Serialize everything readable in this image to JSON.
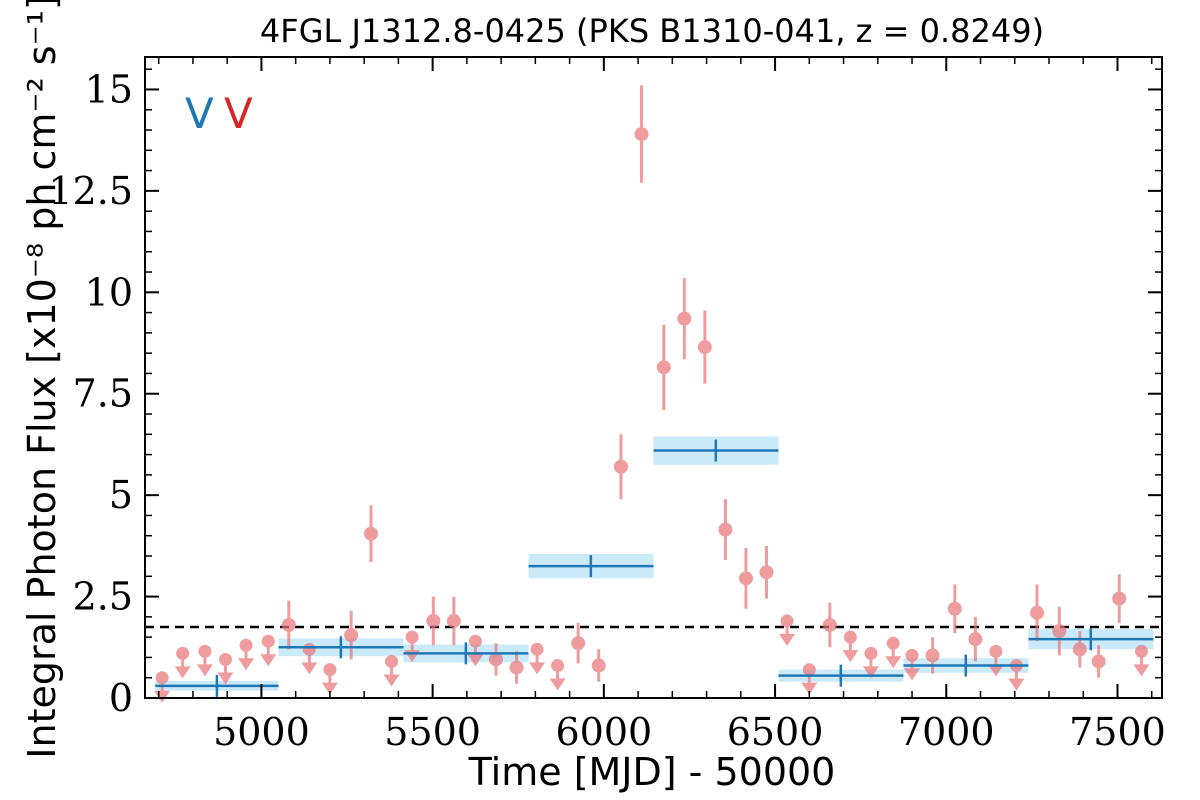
{
  "chart_data": {
    "type": "scatter",
    "title": "4FGL J1312.8-0425 (PKS B1310-041, z = 0.8249)",
    "xlabel": "Time [MJD] - 50000",
    "ylabel": "Integral Photon Flux [x10⁻⁸ ph cm⁻² s⁻¹]",
    "xlim": [
      4660,
      7630
    ],
    "ylim": [
      0,
      15.8
    ],
    "x_ticks": [
      5000,
      5500,
      6000,
      6500,
      7000,
      7500
    ],
    "y_ticks": [
      0,
      2.5,
      5,
      7.5,
      10,
      12.5,
      15
    ],
    "y_tick_labels": [
      "0",
      "2.5",
      "5",
      "7.5",
      "10",
      "12.5",
      "15"
    ],
    "grid": false,
    "legend": {
      "placement": "top-left",
      "entries": [
        {
          "label": "V",
          "color": "#1f77b4"
        },
        {
          "label": "V",
          "color": "#d62728"
        }
      ]
    },
    "reference_line": {
      "y": 1.75,
      "style": "dashed",
      "color": "#000000"
    },
    "detections": {
      "color": "#e8777a",
      "points": [
        {
          "x": 5080,
          "y": 1.8,
          "err": 0.6
        },
        {
          "x": 5262,
          "y": 1.55,
          "err": 0.6
        },
        {
          "x": 5320,
          "y": 4.05,
          "err": 0.7
        },
        {
          "x": 5502,
          "y": 1.9,
          "err": 0.6
        },
        {
          "x": 5562,
          "y": 1.9,
          "err": 0.6
        },
        {
          "x": 5685,
          "y": 0.95,
          "err": 0.4
        },
        {
          "x": 5745,
          "y": 0.75,
          "err": 0.4
        },
        {
          "x": 5925,
          "y": 1.35,
          "err": 0.5
        },
        {
          "x": 5985,
          "y": 0.8,
          "err": 0.4
        },
        {
          "x": 6050,
          "y": 5.7,
          "err": 0.8
        },
        {
          "x": 6110,
          "y": 13.9,
          "err": 1.2
        },
        {
          "x": 6175,
          "y": 8.15,
          "err": 1.05
        },
        {
          "x": 6235,
          "y": 9.35,
          "err": 1.0
        },
        {
          "x": 6295,
          "y": 8.65,
          "err": 0.9
        },
        {
          "x": 6355,
          "y": 4.15,
          "err": 0.75
        },
        {
          "x": 6415,
          "y": 2.95,
          "err": 0.75
        },
        {
          "x": 6475,
          "y": 3.1,
          "err": 0.65
        },
        {
          "x": 6660,
          "y": 1.8,
          "err": 0.55
        },
        {
          "x": 6960,
          "y": 1.05,
          "err": 0.45
        },
        {
          "x": 7025,
          "y": 2.2,
          "err": 0.6
        },
        {
          "x": 7085,
          "y": 1.45,
          "err": 0.55
        },
        {
          "x": 7265,
          "y": 2.1,
          "err": 0.7
        },
        {
          "x": 7330,
          "y": 1.65,
          "err": 0.6
        },
        {
          "x": 7390,
          "y": 1.2,
          "err": 0.45
        },
        {
          "x": 7445,
          "y": 0.9,
          "err": 0.4
        },
        {
          "x": 7505,
          "y": 2.45,
          "err": 0.6
        }
      ]
    },
    "upper_limits": {
      "color": "#e8777a",
      "points": [
        {
          "x": 4710,
          "y": 0.5
        },
        {
          "x": 4770,
          "y": 1.1
        },
        {
          "x": 4835,
          "y": 1.15
        },
        {
          "x": 4895,
          "y": 0.95
        },
        {
          "x": 4955,
          "y": 1.3
        },
        {
          "x": 5020,
          "y": 1.4
        },
        {
          "x": 5140,
          "y": 1.2
        },
        {
          "x": 5200,
          "y": 0.7
        },
        {
          "x": 5380,
          "y": 0.9
        },
        {
          "x": 5440,
          "y": 1.5
        },
        {
          "x": 5625,
          "y": 1.4
        },
        {
          "x": 5805,
          "y": 1.2
        },
        {
          "x": 5865,
          "y": 0.8
        },
        {
          "x": 6535,
          "y": 1.9
        },
        {
          "x": 6600,
          "y": 0.7
        },
        {
          "x": 6720,
          "y": 1.5
        },
        {
          "x": 6780,
          "y": 1.1
        },
        {
          "x": 6845,
          "y": 1.35
        },
        {
          "x": 6900,
          "y": 1.05
        },
        {
          "x": 7145,
          "y": 1.15
        },
        {
          "x": 7205,
          "y": 0.8
        },
        {
          "x": 7570,
          "y": 1.15
        }
      ]
    },
    "bins": {
      "color": "#1f77b4",
      "band_color": "#a9dcf5",
      "items": [
        {
          "x0": 4690,
          "x1": 5050,
          "xc": 4870,
          "y": 0.3,
          "band": 0.12
        },
        {
          "x0": 5050,
          "x1": 5415,
          "xc": 5232,
          "y": 1.25,
          "band": 0.22
        },
        {
          "x0": 5415,
          "x1": 5780,
          "xc": 5597,
          "y": 1.1,
          "band": 0.22
        },
        {
          "x0": 5780,
          "x1": 6145,
          "xc": 5962,
          "y": 3.25,
          "band": 0.3
        },
        {
          "x0": 6145,
          "x1": 6510,
          "xc": 6327,
          "y": 6.1,
          "band": 0.35
        },
        {
          "x0": 6510,
          "x1": 6875,
          "xc": 6692,
          "y": 0.55,
          "band": 0.15
        },
        {
          "x0": 6875,
          "x1": 7240,
          "xc": 7057,
          "y": 0.8,
          "band": 0.18
        },
        {
          "x0": 7240,
          "x1": 7605,
          "xc": 7422,
          "y": 1.45,
          "band": 0.25
        }
      ]
    }
  }
}
